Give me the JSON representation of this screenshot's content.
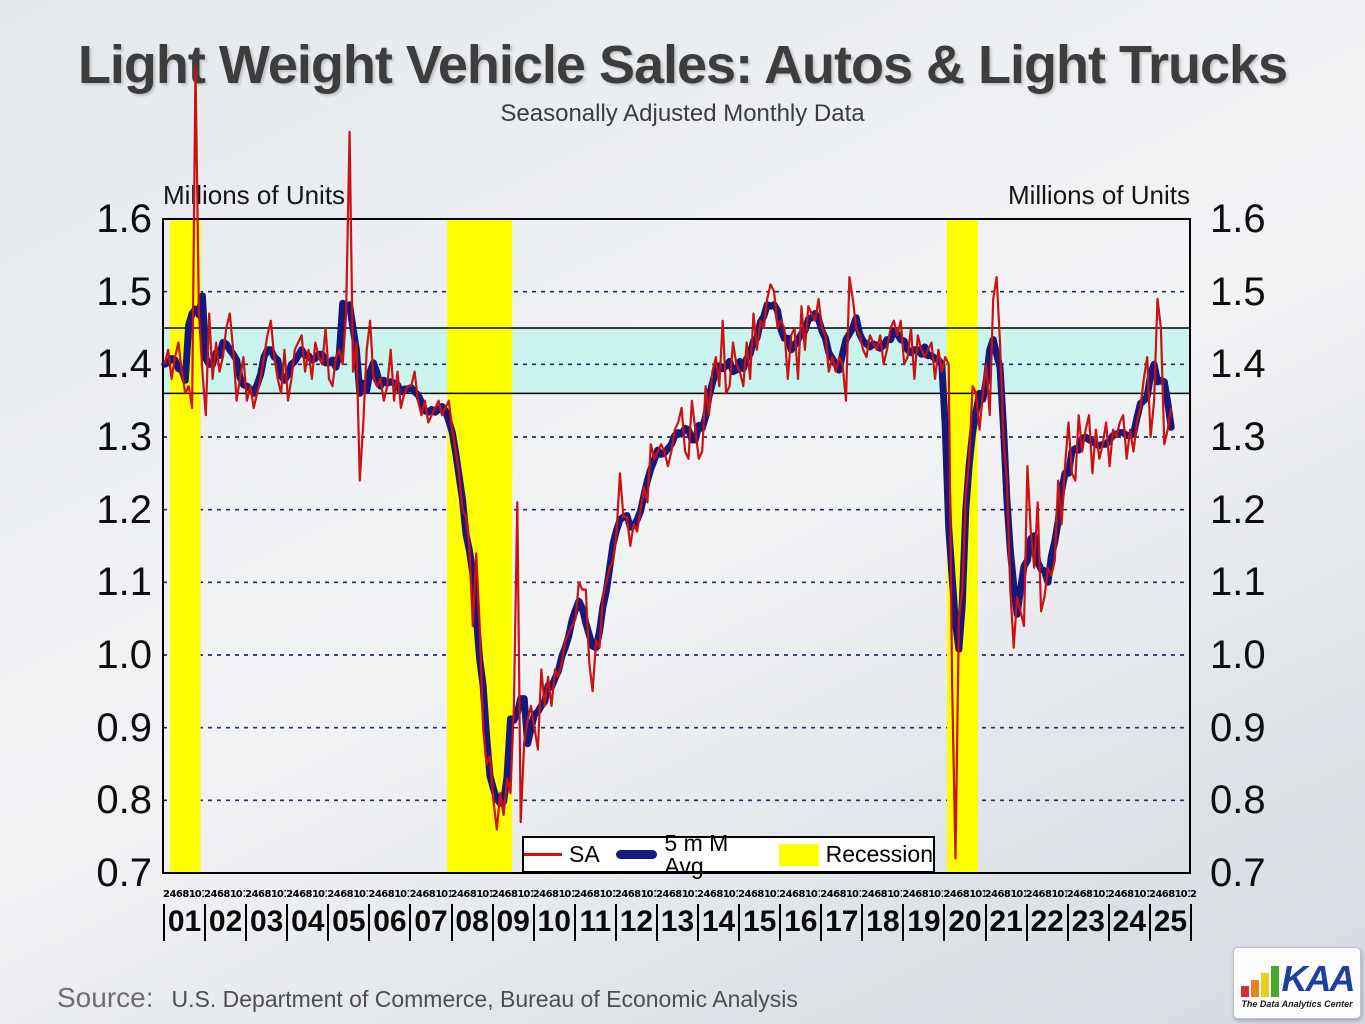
{
  "title": "Light Weight Vehicle Sales: Autos & Light Trucks",
  "subtitle": "Seasonally Adjusted Monthly Data",
  "units_left": "Millions of Units",
  "units_right": "Millions of Units",
  "legend": {
    "items": [
      {
        "label": "SA",
        "marker": "red-line"
      },
      {
        "label": "5 m M Avg",
        "marker": "navy-thick-line"
      },
      {
        "label": "Recession",
        "marker": "yellow-box"
      }
    ]
  },
  "source": {
    "label": "Source:",
    "text": "U.S. Department of Commerce, Bureau of Economic Analysis"
  },
  "logo": {
    "name": "KAA",
    "tagline": "The Data Analytics Center",
    "icon": "ascending-bar-chart-icon"
  },
  "colors": {
    "sa_line": "#cc1111",
    "moving_avg_line": "#18187a",
    "recession_band": "#ffff00",
    "target_band": "#ccf4ee",
    "gridline": "#2a2a5e"
  },
  "chart_data": {
    "type": "line",
    "title": "Light Weight Vehicle Sales: Autos & Light Trucks",
    "subtitle": "Seasonally Adjusted Monthly Data",
    "ylabel": "Millions of Units",
    "ylim": [
      0.7,
      1.6
    ],
    "yticks": [
      "1.6",
      "1.5",
      "1.4",
      "1.3",
      "1.2",
      "1.1",
      "1.0",
      "0.9",
      "0.8",
      "0.7"
    ],
    "grid": "dashed horizontal lines every 0.1 from 0.8 to 1.5",
    "legend_position": "bottom center inside plot",
    "x_domain": [
      "2001-01",
      "2025-12"
    ],
    "x_year_labels": [
      "01",
      "02",
      "03",
      "04",
      "05",
      "06",
      "07",
      "08",
      "09",
      "10",
      "11",
      "12",
      "13",
      "14",
      "15",
      "16",
      "17",
      "18",
      "19",
      "20",
      "21",
      "22",
      "23",
      "24",
      "25"
    ],
    "x_month_tick_pattern": "2 4 6 8 10 12",
    "x_month_tick_trailing": "2",
    "highlight_band": {
      "from": 1.36,
      "to": 1.45,
      "color": "#ccf4ee"
    },
    "recession_bands": [
      {
        "from": "2001-03",
        "to": "2001-11"
      },
      {
        "from": "2007-12",
        "to": "2009-06"
      },
      {
        "from": "2020-02",
        "to": "2020-10"
      }
    ],
    "series": [
      {
        "name": "SA",
        "color": "#cc1111",
        "freq": "monthly",
        "start": "2001-01",
        "values": [
          1.4,
          1.42,
          1.38,
          1.41,
          1.43,
          1.39,
          1.36,
          1.37,
          1.34,
          1.81,
          1.47,
          1.39,
          1.33,
          1.47,
          1.38,
          1.43,
          1.39,
          1.41,
          1.45,
          1.47,
          1.42,
          1.35,
          1.38,
          1.41,
          1.35,
          1.37,
          1.34,
          1.36,
          1.38,
          1.41,
          1.44,
          1.46,
          1.41,
          1.38,
          1.36,
          1.42,
          1.35,
          1.38,
          1.42,
          1.43,
          1.44,
          1.39,
          1.42,
          1.38,
          1.43,
          1.41,
          1.4,
          1.45,
          1.38,
          1.37,
          1.41,
          1.42,
          1.4,
          1.47,
          1.72,
          1.39,
          1.43,
          1.24,
          1.32,
          1.42,
          1.46,
          1.38,
          1.37,
          1.38,
          1.35,
          1.37,
          1.42,
          1.35,
          1.39,
          1.34,
          1.36,
          1.37,
          1.37,
          1.39,
          1.35,
          1.33,
          1.35,
          1.32,
          1.33,
          1.34,
          1.35,
          1.33,
          1.34,
          1.35,
          1.31,
          1.28,
          1.25,
          1.2,
          1.19,
          1.15,
          1.04,
          1.14,
          1.04,
          0.9,
          0.85,
          0.86,
          0.8,
          0.76,
          0.81,
          0.78,
          0.83,
          0.81,
          0.93,
          1.21,
          0.77,
          0.88,
          0.91,
          0.93,
          0.9,
          0.87,
          0.98,
          0.93,
          0.97,
          0.93,
          0.98,
          0.97,
          0.99,
          1.02,
          1.03,
          1.04,
          1.05,
          1.1,
          1.09,
          1.09,
          0.99,
          0.95,
          1.02,
          1.01,
          1.08,
          1.1,
          1.12,
          1.13,
          1.17,
          1.25,
          1.19,
          1.19,
          1.15,
          1.18,
          1.17,
          1.2,
          1.23,
          1.21,
          1.29,
          1.27,
          1.28,
          1.29,
          1.28,
          1.26,
          1.28,
          1.31,
          1.32,
          1.34,
          1.28,
          1.27,
          1.35,
          1.31,
          1.27,
          1.28,
          1.37,
          1.33,
          1.39,
          1.41,
          1.37,
          1.46,
          1.36,
          1.37,
          1.43,
          1.4,
          1.39,
          1.37,
          1.43,
          1.38,
          1.47,
          1.42,
          1.46,
          1.45,
          1.49,
          1.51,
          1.5,
          1.45,
          1.46,
          1.45,
          1.38,
          1.44,
          1.45,
          1.38,
          1.48,
          1.42,
          1.48,
          1.47,
          1.46,
          1.49,
          1.45,
          1.44,
          1.39,
          1.41,
          1.39,
          1.41,
          1.4,
          1.35,
          1.52,
          1.49,
          1.45,
          1.44,
          1.42,
          1.41,
          1.44,
          1.43,
          1.42,
          1.44,
          1.4,
          1.42,
          1.45,
          1.46,
          1.44,
          1.46,
          1.4,
          1.41,
          1.45,
          1.38,
          1.44,
          1.42,
          1.41,
          1.42,
          1.43,
          1.38,
          1.42,
          1.39,
          1.41,
          1.4,
          0.96,
          0.72,
          1.05,
          1.09,
          1.22,
          1.27,
          1.37,
          1.36,
          1.31,
          1.36,
          1.4,
          1.33,
          1.49,
          1.52,
          1.43,
          1.3,
          1.24,
          1.09,
          1.01,
          1.08,
          1.06,
          1.04,
          1.26,
          1.17,
          1.12,
          1.21,
          1.06,
          1.08,
          1.12,
          1.11,
          1.13,
          1.24,
          1.18,
          1.26,
          1.32,
          1.25,
          1.24,
          1.33,
          1.28,
          1.31,
          1.33,
          1.25,
          1.31,
          1.27,
          1.29,
          1.32,
          1.26,
          1.31,
          1.3,
          1.32,
          1.33,
          1.27,
          1.31,
          1.28,
          1.32,
          1.34,
          1.38,
          1.41,
          1.3,
          1.35,
          1.49,
          1.45,
          1.29,
          1.31,
          1.34
        ]
      },
      {
        "name": "5 m M Avg",
        "color": "#18187a",
        "derivation": "5-month centered moving average of SA series"
      }
    ]
  }
}
